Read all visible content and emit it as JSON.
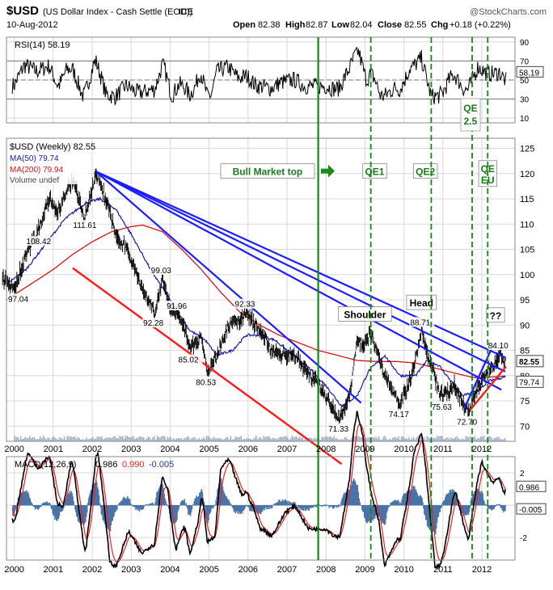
{
  "header": {
    "symbol": "$USD",
    "description": "(US Dollar Index - Cash Settle (EOD))",
    "exchange": "ICE",
    "date": "10-Aug-2012",
    "source": "@StockCharts.com",
    "open_label": "Open",
    "open": "82.38",
    "high_label": "High",
    "high": "82.87",
    "low_label": "Low",
    "low": "82.04",
    "close_label": "Close",
    "close": "82.55",
    "chg_label": "Chg",
    "chg": "+0.18 (+0.22%)"
  },
  "colors": {
    "price": "#000000",
    "ma50": "#1a1aa8",
    "ma200": "#dd1111",
    "trend_blue": "#1c1cff",
    "trend_red": "#ff1a1a",
    "event_line": "#138a13",
    "volume": "#2f5f9a",
    "macd": "#000000",
    "signal": "#ee2222",
    "histogram": "#4a74a8",
    "grid": "#d8d8d8"
  },
  "chart_data": [
    {
      "type": "line",
      "panel": "rsi",
      "title": "RSI(14) 58.19",
      "series": [
        {
          "name": "RSI(14)",
          "last": 58.19
        }
      ],
      "y_ticks": [
        10,
        30,
        50,
        70,
        90
      ],
      "reference_levels": [
        30,
        50,
        70
      ],
      "ylim": [
        5,
        95
      ],
      "y_tag": "58.19"
    },
    {
      "type": "line",
      "panel": "price",
      "title": "$USD (Weekly) 82.55",
      "x_axis_labels": [
        "2000",
        "2001",
        "2002",
        "2003",
        "2004",
        "2005",
        "2006",
        "2007",
        "2008",
        "2009",
        "2010",
        "2011",
        "2012"
      ],
      "ylim": [
        67,
        127
      ],
      "y_ticks": [
        70,
        75,
        80,
        85,
        90,
        95,
        100,
        105,
        110,
        115,
        120,
        125
      ],
      "series": [
        {
          "name": "$USD (Weekly)",
          "last": 82.55
        },
        {
          "name": "MA(50)",
          "last": 79.74
        },
        {
          "name": "MA(200)",
          "last": 79.94
        },
        {
          "name": "Volume undef"
        }
      ],
      "price_path": [
        [
          1999.7,
          99.5
        ],
        [
          2000.0,
          97.04
        ],
        [
          2000.3,
          104
        ],
        [
          2000.6,
          108.42
        ],
        [
          2000.9,
          115
        ],
        [
          2001.1,
          112
        ],
        [
          2001.5,
          119
        ],
        [
          2001.8,
          111.61
        ],
        [
          2002.0,
          117
        ],
        [
          2002.1,
          120.4
        ],
        [
          2002.3,
          116
        ],
        [
          2002.6,
          108
        ],
        [
          2002.9,
          105
        ],
        [
          2003.1,
          101
        ],
        [
          2003.3,
          97
        ],
        [
          2003.5,
          94
        ],
        [
          2003.6,
          92.28
        ],
        [
          2003.8,
          99.03
        ],
        [
          2004.0,
          93
        ],
        [
          2004.2,
          91.96
        ],
        [
          2004.4,
          89
        ],
        [
          2004.5,
          85.02
        ],
        [
          2004.8,
          88
        ],
        [
          2004.95,
          80.53
        ],
        [
          2005.2,
          84
        ],
        [
          2005.5,
          90
        ],
        [
          2005.8,
          91
        ],
        [
          2005.95,
          92.33
        ],
        [
          2006.3,
          89
        ],
        [
          2006.6,
          85
        ],
        [
          2006.9,
          84
        ],
        [
          2007.2,
          84
        ],
        [
          2007.5,
          81
        ],
        [
          2007.8,
          78
        ],
        [
          2008.0,
          76
        ],
        [
          2008.2,
          73
        ],
        [
          2008.35,
          71.33
        ],
        [
          2008.6,
          76
        ],
        [
          2008.8,
          87
        ],
        [
          2009.0,
          86
        ],
        [
          2009.15,
          89
        ],
        [
          2009.5,
          80
        ],
        [
          2009.8,
          76
        ],
        [
          2009.9,
          74.17
        ],
        [
          2010.2,
          80
        ],
        [
          2010.45,
          88.71
        ],
        [
          2010.7,
          82
        ],
        [
          2010.9,
          77
        ],
        [
          2011.0,
          75.63
        ],
        [
          2011.3,
          78
        ],
        [
          2011.55,
          74
        ],
        [
          2011.65,
          72.7
        ],
        [
          2011.9,
          78
        ],
        [
          2012.1,
          80
        ],
        [
          2012.3,
          82
        ],
        [
          2012.45,
          84.1
        ],
        [
          2012.55,
          83
        ],
        [
          2012.62,
          82.55
        ]
      ],
      "ma50_path": [
        [
          1999.8,
          98
        ],
        [
          2000.3,
          101
        ],
        [
          2000.8,
          106
        ],
        [
          2001.3,
          111
        ],
        [
          2001.8,
          114
        ],
        [
          2002.2,
          115
        ],
        [
          2002.6,
          113
        ],
        [
          2003.0,
          108
        ],
        [
          2003.5,
          101
        ],
        [
          2004.0,
          95
        ],
        [
          2004.5,
          89
        ],
        [
          2004.9,
          87
        ],
        [
          2005.2,
          84
        ],
        [
          2005.6,
          85
        ],
        [
          2005.95,
          88
        ],
        [
          2006.3,
          88
        ],
        [
          2006.7,
          87
        ],
        [
          2007.0,
          85
        ],
        [
          2007.5,
          82
        ],
        [
          2008.0,
          78
        ],
        [
          2008.4,
          74
        ],
        [
          2008.8,
          76
        ],
        [
          2009.1,
          81
        ],
        [
          2009.5,
          84
        ],
        [
          2009.9,
          80
        ],
        [
          2010.3,
          80
        ],
        [
          2010.6,
          83
        ],
        [
          2010.9,
          82
        ],
        [
          2011.2,
          79
        ],
        [
          2011.5,
          76
        ],
        [
          2011.9,
          77
        ],
        [
          2012.2,
          79
        ],
        [
          2012.62,
          79.74
        ]
      ],
      "ma200_path": [
        [
          1999.8,
          95
        ],
        [
          2000.5,
          98.5
        ],
        [
          2001.0,
          101
        ],
        [
          2001.5,
          104
        ],
        [
          2002.0,
          106.5
        ],
        [
          2002.5,
          108.5
        ],
        [
          2003.0,
          109.5
        ],
        [
          2003.3,
          109.8
        ],
        [
          2003.8,
          108.5
        ],
        [
          2004.3,
          105
        ],
        [
          2004.8,
          101
        ],
        [
          2005.3,
          96.5
        ],
        [
          2005.8,
          92.5
        ],
        [
          2006.3,
          90
        ],
        [
          2006.8,
          88
        ],
        [
          2007.3,
          86.5
        ],
        [
          2007.8,
          85
        ],
        [
          2008.3,
          84
        ],
        [
          2008.8,
          83
        ],
        [
          2009.3,
          82.8
        ],
        [
          2009.8,
          82.8
        ],
        [
          2010.3,
          82.5
        ],
        [
          2010.8,
          81.5
        ],
        [
          2011.3,
          80.5
        ],
        [
          2011.8,
          79.6
        ],
        [
          2012.2,
          79.7
        ],
        [
          2012.62,
          79.94
        ]
      ],
      "price_labels": [
        {
          "x": 2000.0,
          "y": 97.04,
          "text": "97.04",
          "pos": "below"
        },
        {
          "x": 2000.6,
          "y": 108.42,
          "text": "108.42",
          "pos": "below"
        },
        {
          "x": 2001.8,
          "y": 111.61,
          "text": "111.61",
          "pos": "below"
        },
        {
          "x": 2003.8,
          "y": 99.03,
          "text": "99.03",
          "pos": "above"
        },
        {
          "x": 2003.6,
          "y": 92.28,
          "text": "92.28",
          "pos": "below"
        },
        {
          "x": 2004.2,
          "y": 91.96,
          "text": "91.96",
          "pos": "above"
        },
        {
          "x": 2004.5,
          "y": 85.02,
          "text": "85.02",
          "pos": "below"
        },
        {
          "x": 2004.95,
          "y": 80.53,
          "text": "80.53",
          "pos": "below"
        },
        {
          "x": 2005.95,
          "y": 92.33,
          "text": "92.33",
          "pos": "above"
        },
        {
          "x": 2008.35,
          "y": 71.33,
          "text": "71.33",
          "pos": "below"
        },
        {
          "x": 2009.9,
          "y": 74.17,
          "text": "74.17",
          "pos": "below"
        },
        {
          "x": 2010.45,
          "y": 88.71,
          "text": "88.71",
          "pos": "above"
        },
        {
          "x": 2011.0,
          "y": 75.63,
          "text": "75.63",
          "pos": "below"
        },
        {
          "x": 2011.65,
          "y": 72.7,
          "text": "72.70",
          "pos": "below"
        },
        {
          "x": 2012.45,
          "y": 84.1,
          "text": "84.10",
          "pos": "above"
        }
      ],
      "trendlines_blue": [
        {
          "from": [
            2002.1,
            120.4
          ],
          "to": [
            2008.9,
            74.6
          ]
        },
        {
          "from": [
            2002.1,
            120.4
          ],
          "to": [
            2012.5,
            77.2
          ]
        },
        {
          "from": [
            2002.1,
            120.4
          ],
          "to": [
            2012.6,
            80.8
          ]
        },
        {
          "from": [
            2002.1,
            120.4
          ],
          "to": [
            2012.6,
            83.6
          ]
        },
        {
          "from": [
            2011.55,
            73.5
          ],
          "to": [
            2012.3,
            86.2
          ]
        }
      ],
      "trendlines_red": [
        {
          "from": [
            2001.5,
            101.3
          ],
          "to": [
            2008.4,
            62.5
          ]
        },
        {
          "from": [
            2011.7,
            73.2
          ],
          "to": [
            2012.62,
            81.8
          ]
        }
      ],
      "annotations": [
        {
          "text": "Bull Market top",
          "color": "green",
          "x": 2006.5,
          "y": 120.5,
          "arrow": true
        },
        {
          "text": "QE1",
          "color": "green",
          "x": 2009.25,
          "y": 120.5
        },
        {
          "text": "QE2",
          "color": "green",
          "x": 2010.55,
          "y": 120.5
        },
        {
          "text": "QE\nEU",
          "color": "green",
          "x": 2012.15,
          "y": 120
        },
        {
          "text": "Shoulder",
          "color": "black",
          "x": 2009.0,
          "y": 92.2
        },
        {
          "text": "Head",
          "color": "black",
          "x": 2010.45,
          "y": 94.5
        },
        {
          "text": "??",
          "color": "black",
          "x": 2012.35,
          "y": 92.0
        }
      ],
      "y_tags": [
        {
          "value": 82.55,
          "text": "82.55",
          "bold": true
        },
        {
          "value": 79.74,
          "text": "79.74",
          "bold": false
        }
      ]
    },
    {
      "type": "line",
      "panel": "macd",
      "title": "MACD(12,26,9)",
      "series": [
        {
          "name": "MACD",
          "last": 0.986
        },
        {
          "name": "Signal",
          "last": 0.99
        },
        {
          "name": "Histogram",
          "last": -0.005
        }
      ],
      "value_labels": [
        "0.986",
        "0.990",
        "-0.005"
      ],
      "y_ticks": [
        -2,
        0,
        2
      ],
      "ylim": [
        -3.4,
        3.0
      ],
      "y_tags": [
        {
          "value": 0.986,
          "text": "0.986"
        },
        {
          "value": -0.005,
          "text": "-0.005"
        }
      ]
    }
  ],
  "x_axis": {
    "years": [
      "2000",
      "2001",
      "2002",
      "2003",
      "2004",
      "2005",
      "2006",
      "2007",
      "2008",
      "2009",
      "2010",
      "2011",
      "2012"
    ]
  },
  "events": [
    {
      "name": "Bull Market top",
      "x": 2007.8,
      "style": "solid"
    },
    {
      "name": "QE1",
      "x": 2009.15,
      "style": "dashed"
    },
    {
      "name": "QE2",
      "x": 2010.7,
      "style": "dashed"
    },
    {
      "name": "QE 2.5",
      "x": 2011.75,
      "style": "dashed"
    },
    {
      "name": "QE EU",
      "x": 2012.15,
      "style": "dashed"
    }
  ],
  "rsi_labels": {
    "qe25": "QE\n2.5"
  }
}
